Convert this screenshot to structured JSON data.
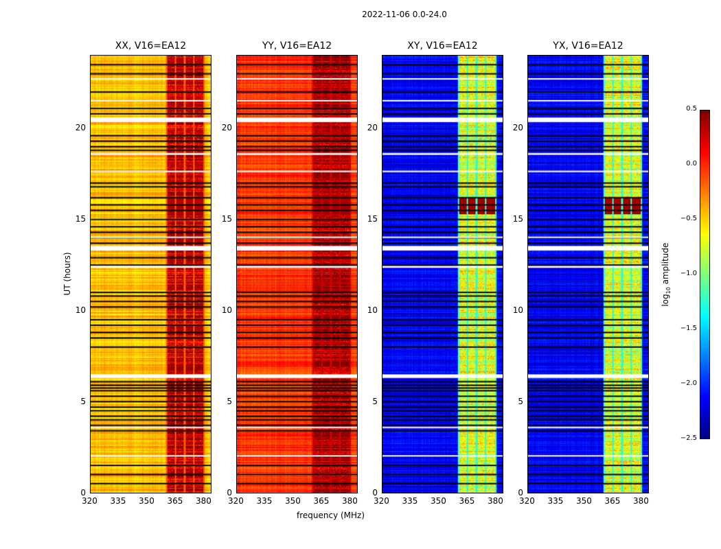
{
  "chart_data": {
    "type": "heatmap",
    "suptitle": "2022-11-06 0.0-24.0",
    "xlabel": "frequency (MHz)",
    "ylabel": "UT (hours)",
    "xlim": [
      320,
      384
    ],
    "ylim": [
      0,
      24
    ],
    "xticks": [
      "320",
      "335",
      "350",
      "365",
      "380"
    ],
    "xtick_values": [
      320,
      335,
      350,
      365,
      380
    ],
    "yticks": [
      "0",
      "5",
      "10",
      "15",
      "20"
    ],
    "ytick_values": [
      0,
      5,
      10,
      15,
      20
    ],
    "panels": [
      {
        "title": "XX, V16=EA12",
        "base_log_amp": -0.45,
        "band_log_amp": 0.2,
        "hot_log_amp": 0.35
      },
      {
        "title": "YY, V16=EA12",
        "base_log_amp": -0.05,
        "band_log_amp": 0.3,
        "hot_log_amp": 0.4
      },
      {
        "title": "XY, V16=EA12",
        "base_log_amp": -2.15,
        "band_log_amp": -0.8,
        "hot_log_amp": 0.4
      },
      {
        "title": "YX, V16=EA12",
        "base_log_amp": -2.15,
        "band_log_amp": -0.8,
        "hot_log_amp": 0.4
      }
    ],
    "band_segments_mhz": [
      [
        360.5,
        364.5
      ],
      [
        365.3,
        369.5
      ],
      [
        370.3,
        374.5
      ],
      [
        375.3,
        380
      ]
    ],
    "hot_interval_hours": [
      15.3,
      16.2
    ],
    "flagged_black_hours": [
      0.5,
      1.0,
      1.5,
      3.4,
      3.7,
      4.0,
      4.2,
      4.5,
      4.7,
      5.0,
      5.3,
      5.6,
      5.75,
      5.9,
      6.1,
      8.0,
      8.5,
      8.8,
      9.2,
      9.5,
      10.2,
      10.5,
      10.8,
      11.0,
      12.5,
      12.9,
      13.7,
      14.0,
      14.3,
      14.6,
      15.0,
      15.5,
      15.8,
      16.2,
      16.8,
      17.0,
      18.8,
      19.0,
      19.3,
      19.6,
      20.8,
      21.1,
      22.0,
      23.0,
      23.5
    ],
    "flagged_white_hours": [
      [
        2.0,
        2.06
      ],
      [
        3.55,
        3.62
      ],
      [
        6.3,
        6.5
      ],
      [
        12.35,
        12.45
      ],
      [
        13.3,
        13.55
      ],
      [
        14.0,
        14.06
      ],
      [
        17.6,
        17.68
      ],
      [
        18.55,
        18.65
      ],
      [
        20.35,
        20.6
      ],
      [
        21.5,
        21.56
      ],
      [
        22.7,
        22.76
      ]
    ],
    "colorbar": {
      "label": "log10 amplitude",
      "label_main": "log",
      "label_sub": "10",
      "label_rest": " amplitude",
      "range": [
        -2.5,
        0.5
      ],
      "ticks": [
        "0.5",
        "0.0",
        "−0.5",
        "−1.0",
        "−1.5",
        "−2.0",
        "−2.5"
      ],
      "tick_values": [
        0.5,
        0.0,
        -0.5,
        -1.0,
        -1.5,
        -2.0,
        -2.5
      ],
      "colormap": "jet"
    }
  }
}
